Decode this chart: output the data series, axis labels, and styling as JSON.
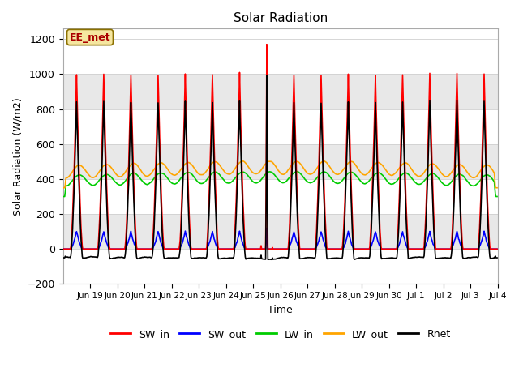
{
  "title": "Solar Radiation",
  "ylabel": "Solar Radiation (W/m2)",
  "xlabel": "Time",
  "annotation_label": "EE_met",
  "ylim": [
    -200,
    1260
  ],
  "background_color": "#ffffff",
  "plot_bg_color": "#ffffff",
  "series": {
    "SW_in": {
      "color": "#ff0000",
      "linewidth": 1.2
    },
    "SW_out": {
      "color": "#0000ff",
      "linewidth": 1.2
    },
    "LW_in": {
      "color": "#00cc00",
      "linewidth": 1.2
    },
    "LW_out": {
      "color": "#ffa500",
      "linewidth": 1.2
    },
    "Rnet": {
      "color": "#000000",
      "linewidth": 1.2
    }
  },
  "legend_entries": [
    "SW_in",
    "SW_out",
    "LW_in",
    "LW_out",
    "Rnet"
  ],
  "legend_colors": [
    "#ff0000",
    "#0000ff",
    "#00cc00",
    "#ffa500",
    "#000000"
  ],
  "xtick_labels": [
    "Jun 19",
    "Jun 20",
    "Jun 21",
    "Jun 22",
    "Jun 23",
    "Jun 24",
    "Jun 25",
    "Jun 26",
    "Jun 27",
    "Jun 28",
    "Jun 29",
    "Jun 30",
    "Jul 1",
    "Jul 2",
    "Jul 3",
    "Jul 4"
  ],
  "ytick_values": [
    -200,
    0,
    200,
    400,
    600,
    800,
    1000,
    1200
  ],
  "grid_color": "#d0d0d0",
  "band_colors": [
    "#ffffff",
    "#e8e8e8"
  ],
  "n_days": 16,
  "spike_day_idx": 7,
  "spike_value": 1170
}
